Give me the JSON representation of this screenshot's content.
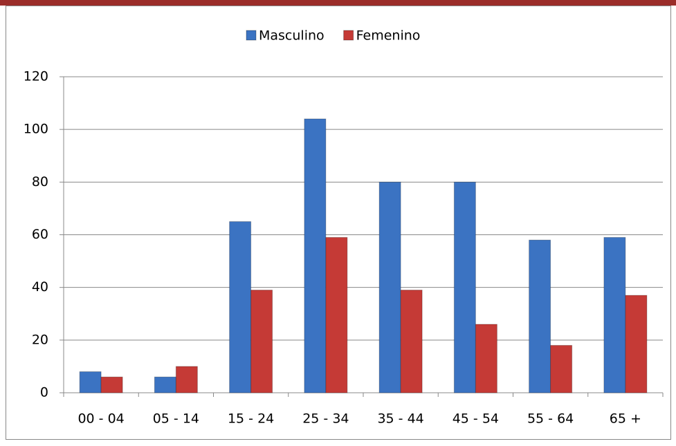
{
  "chart_data": {
    "type": "bar",
    "categories": [
      "00 - 04",
      "05 - 14",
      "15 - 24",
      "25 - 34",
      "35 - 44",
      "45 - 54",
      "55 - 64",
      "65 +"
    ],
    "series": [
      {
        "name": "Masculino",
        "color": "#3b73c2",
        "values": [
          8,
          6,
          65,
          104,
          80,
          80,
          58,
          59
        ]
      },
      {
        "name": "Femenino",
        "color": "#c53a36",
        "values": [
          6,
          10,
          39,
          59,
          39,
          26,
          18,
          37
        ]
      }
    ],
    "ylim": [
      0,
      120
    ],
    "yticks": [
      0,
      20,
      40,
      60,
      80,
      100,
      120
    ],
    "grid": true,
    "legend": "top"
  }
}
